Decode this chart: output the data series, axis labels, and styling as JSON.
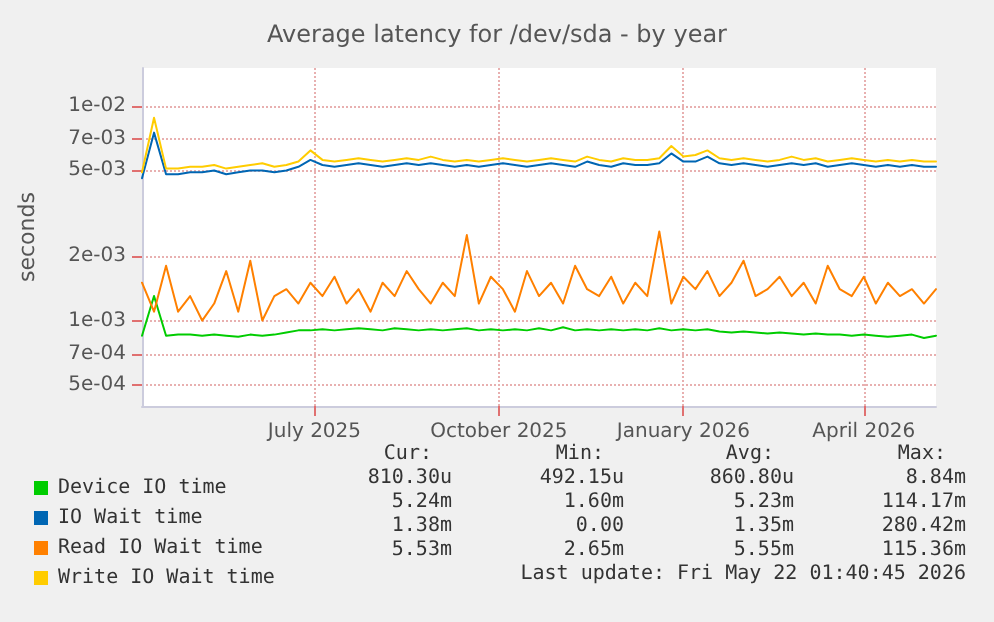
{
  "chart_data": {
    "type": "line",
    "title": "Average latency for /dev/sda - by year",
    "ylabel": "seconds",
    "x": [
      "2025-04-21",
      "2025-04-27",
      "2025-05-03",
      "2025-05-09",
      "2025-05-15",
      "2025-05-21",
      "2025-05-27",
      "2025-06-02",
      "2025-06-08",
      "2025-06-14",
      "2025-06-20",
      "2025-06-26",
      "2025-07-02",
      "2025-07-08",
      "2025-07-14",
      "2025-07-20",
      "2025-07-26",
      "2025-08-01",
      "2025-08-07",
      "2025-08-13",
      "2025-08-19",
      "2025-08-25",
      "2025-08-31",
      "2025-09-06",
      "2025-09-12",
      "2025-09-18",
      "2025-09-24",
      "2025-09-30",
      "2025-10-06",
      "2025-10-12",
      "2025-10-18",
      "2025-10-24",
      "2025-10-30",
      "2025-11-05",
      "2025-11-11",
      "2025-11-17",
      "2025-11-23",
      "2025-11-29",
      "2025-12-05",
      "2025-12-11",
      "2025-12-17",
      "2025-12-23",
      "2025-12-29",
      "2026-01-04",
      "2026-01-10",
      "2026-01-16",
      "2026-01-22",
      "2026-01-28",
      "2026-02-03",
      "2026-02-09",
      "2026-02-15",
      "2026-02-21",
      "2026-02-27",
      "2026-03-05",
      "2026-03-11",
      "2026-03-17",
      "2026-03-23",
      "2026-03-29",
      "2026-04-04",
      "2026-04-10",
      "2026-04-16",
      "2026-04-22",
      "2026-04-28",
      "2026-05-04",
      "2026-05-10",
      "2026-05-16",
      "2026-05-22"
    ],
    "series": [
      {
        "name": "Device IO time",
        "color": "#00cc00",
        "values": [
          0.00085,
          0.0013,
          0.00085,
          0.00086,
          0.00086,
          0.00085,
          0.00086,
          0.00085,
          0.00084,
          0.00086,
          0.00085,
          0.00086,
          0.00088,
          0.0009,
          0.0009,
          0.00091,
          0.0009,
          0.00091,
          0.00092,
          0.00091,
          0.0009,
          0.00092,
          0.00091,
          0.0009,
          0.00091,
          0.0009,
          0.00091,
          0.00092,
          0.0009,
          0.00091,
          0.0009,
          0.00091,
          0.0009,
          0.00092,
          0.0009,
          0.00093,
          0.0009,
          0.00091,
          0.0009,
          0.00091,
          0.0009,
          0.00091,
          0.0009,
          0.00092,
          0.0009,
          0.00091,
          0.0009,
          0.00091,
          0.00089,
          0.00088,
          0.00089,
          0.00088,
          0.00087,
          0.00088,
          0.00087,
          0.00086,
          0.00087,
          0.00086,
          0.00086,
          0.00085,
          0.00086,
          0.00085,
          0.00084,
          0.00085,
          0.00086,
          0.00083,
          0.00085
        ]
      },
      {
        "name": "IO Wait time",
        "color": "#0066b3",
        "values": [
          0.0046,
          0.0075,
          0.0048,
          0.0048,
          0.0049,
          0.0049,
          0.005,
          0.0048,
          0.0049,
          0.005,
          0.005,
          0.0049,
          0.005,
          0.0052,
          0.0056,
          0.0053,
          0.0052,
          0.0053,
          0.0054,
          0.0053,
          0.0052,
          0.0053,
          0.0054,
          0.0053,
          0.0054,
          0.0053,
          0.0052,
          0.0053,
          0.0052,
          0.0053,
          0.0054,
          0.0053,
          0.0052,
          0.0053,
          0.0054,
          0.0053,
          0.0052,
          0.0055,
          0.0053,
          0.0052,
          0.0054,
          0.0053,
          0.0053,
          0.0054,
          0.006,
          0.0055,
          0.0055,
          0.0058,
          0.0054,
          0.0053,
          0.0054,
          0.0053,
          0.0052,
          0.0053,
          0.0054,
          0.0053,
          0.0054,
          0.0052,
          0.0053,
          0.0054,
          0.0053,
          0.0052,
          0.0053,
          0.0052,
          0.0053,
          0.0052,
          0.0052
        ]
      },
      {
        "name": "Read IO Wait time",
        "color": "#ff8000",
        "values": [
          0.0015,
          0.0011,
          0.0018,
          0.0011,
          0.0013,
          0.001,
          0.0012,
          0.0017,
          0.0011,
          0.0019,
          0.001,
          0.0013,
          0.0014,
          0.0012,
          0.0015,
          0.0013,
          0.0016,
          0.0012,
          0.0014,
          0.0011,
          0.0015,
          0.0013,
          0.0017,
          0.0014,
          0.0012,
          0.0015,
          0.0013,
          0.0025,
          0.0012,
          0.0016,
          0.0014,
          0.0011,
          0.0017,
          0.0013,
          0.0015,
          0.0012,
          0.0018,
          0.0014,
          0.0013,
          0.0016,
          0.0012,
          0.0015,
          0.0013,
          0.0026,
          0.0012,
          0.0016,
          0.0014,
          0.0017,
          0.0013,
          0.0015,
          0.0019,
          0.0013,
          0.0014,
          0.0016,
          0.0013,
          0.0015,
          0.0012,
          0.0018,
          0.0014,
          0.0013,
          0.0016,
          0.0012,
          0.0015,
          0.0013,
          0.0014,
          0.0012,
          0.0014
        ]
      },
      {
        "name": "Write IO Wait time",
        "color": "#ffcc00",
        "values": [
          0.0049,
          0.0088,
          0.0051,
          0.0051,
          0.0052,
          0.0052,
          0.0053,
          0.0051,
          0.0052,
          0.0053,
          0.0054,
          0.0052,
          0.0053,
          0.0055,
          0.0062,
          0.0056,
          0.0055,
          0.0056,
          0.0057,
          0.0056,
          0.0055,
          0.0056,
          0.0057,
          0.0056,
          0.0058,
          0.0056,
          0.0055,
          0.0056,
          0.0055,
          0.0056,
          0.0057,
          0.0056,
          0.0055,
          0.0056,
          0.0057,
          0.0056,
          0.0055,
          0.0058,
          0.0056,
          0.0055,
          0.0057,
          0.0056,
          0.0056,
          0.0057,
          0.0065,
          0.0058,
          0.0059,
          0.0062,
          0.0057,
          0.0056,
          0.0057,
          0.0056,
          0.0055,
          0.0056,
          0.0058,
          0.0056,
          0.0057,
          0.0055,
          0.0056,
          0.0057,
          0.0056,
          0.0055,
          0.0056,
          0.0055,
          0.0056,
          0.0055,
          0.0055
        ]
      }
    ],
    "xlim": [
      "2025-04-21",
      "2026-05-22"
    ],
    "xticks": [
      {
        "value": "2025-07-16",
        "label": "July 2025"
      },
      {
        "value": "2025-10-16",
        "label": "October 2025"
      },
      {
        "value": "2026-01-16",
        "label": "January 2026"
      },
      {
        "value": "2026-04-16",
        "label": "April 2026"
      }
    ],
    "log": "y",
    "ylim": [
      0.0004,
      0.015
    ],
    "yticks": [
      {
        "value": 0.0005,
        "label": "5e-04"
      },
      {
        "value": 0.0007,
        "label": "7e-04"
      },
      {
        "value": 0.001,
        "label": "1e-03"
      },
      {
        "value": 0.002,
        "label": "2e-03"
      },
      {
        "value": 0.005,
        "label": "5e-03"
      },
      {
        "value": 0.007,
        "label": "7e-03"
      },
      {
        "value": 0.01,
        "label": "1e-02"
      }
    ],
    "grid": true,
    "legend": "bottom left",
    "marker": "none",
    "line_style": "solid",
    "annotations": [
      "Cur:",
      "Min:",
      "Avg:",
      "Max:",
      "810.30u",
      "492.15u",
      "860.80u",
      "8.84m",
      "5.24m",
      "1.60m",
      "5.23m",
      "114.17m",
      "1.38m",
      "0.00",
      "1.35m",
      "280.42m",
      "5.53m",
      "2.65m",
      "5.55m",
      "115.36m",
      "Last update: Fri May 22 01:40:45 2026"
    ]
  }
}
